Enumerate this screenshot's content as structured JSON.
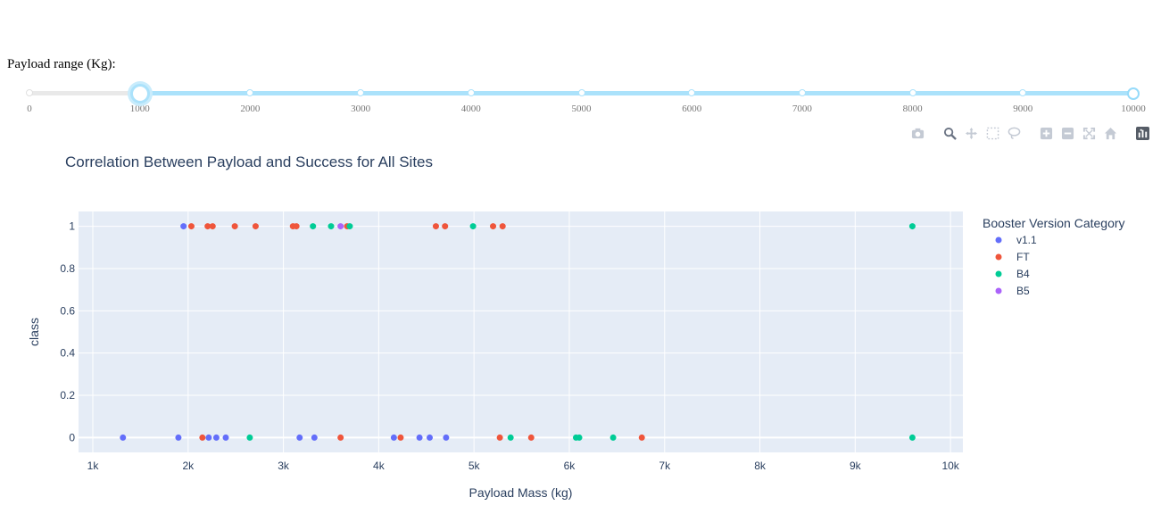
{
  "slider": {
    "label": "Payload range (Kg):",
    "min": 0,
    "max": 10000,
    "value_low": 1000,
    "value_high": 10000,
    "marks": [
      "0",
      "1000",
      "2000",
      "3000",
      "4000",
      "5000",
      "6000",
      "7000",
      "8000",
      "9000",
      "10000"
    ]
  },
  "modebar": {
    "icons": [
      "camera-icon",
      "zoom-icon",
      "pan-icon",
      "box-select-icon",
      "lasso-icon",
      "zoom-in-icon",
      "zoom-out-icon",
      "autoscale-icon",
      "reset-axes-icon",
      "plotly-logo-icon"
    ]
  },
  "chart_data": {
    "type": "scatter",
    "title": "Correlation Between Payload and Success for All Sites",
    "xlabel": "Payload Mass (kg)",
    "ylabel": "class",
    "xlim": [
      850,
      10130
    ],
    "ylim": [
      -0.07,
      1.07
    ],
    "x_ticks": [
      1000,
      2000,
      3000,
      4000,
      5000,
      6000,
      7000,
      8000,
      9000,
      10000
    ],
    "x_tick_labels": [
      "1k",
      "2k",
      "3k",
      "4k",
      "5k",
      "6k",
      "7k",
      "8k",
      "9k",
      "10k"
    ],
    "y_ticks": [
      0,
      0.2,
      0.4,
      0.6,
      0.8,
      1
    ],
    "y_tick_labels": [
      "0",
      "0.2",
      "0.4",
      "0.6",
      "0.8",
      "1"
    ],
    "grid": true,
    "legend_title": "Booster Version Category",
    "legend_position": "right",
    "series": [
      {
        "name": "v1.1",
        "color": "#636efa",
        "x": [
          1952,
          1316,
          1898,
          2216,
          2296,
          2395,
          3170,
          3325,
          4159,
          4428,
          4535,
          4707
        ],
        "y": [
          1,
          0,
          0,
          0,
          0,
          0,
          0,
          0,
          0,
          0,
          0,
          0
        ]
      },
      {
        "name": "FT",
        "color": "#ef553b",
        "x": [
          2034,
          2205,
          2257,
          2490,
          2708,
          3100,
          3136,
          3669,
          4600,
          4696,
          5200,
          5300,
          2150,
          3600,
          4230,
          5271,
          5600,
          6761
        ],
        "y": [
          1,
          1,
          1,
          1,
          1,
          1,
          1,
          1,
          1,
          1,
          1,
          1,
          0,
          0,
          0,
          0,
          0,
          0
        ]
      },
      {
        "name": "B4",
        "color": "#00cc96",
        "x": [
          3310,
          3500,
          3696,
          4990,
          9600,
          2647,
          5384,
          6070,
          6104,
          6460,
          9600
        ],
        "y": [
          1,
          1,
          1,
          1,
          1,
          0,
          0,
          0,
          0,
          0,
          0
        ]
      },
      {
        "name": "B5",
        "color": "#ab63fa",
        "x": [
          3600
        ],
        "y": [
          1
        ]
      }
    ]
  }
}
